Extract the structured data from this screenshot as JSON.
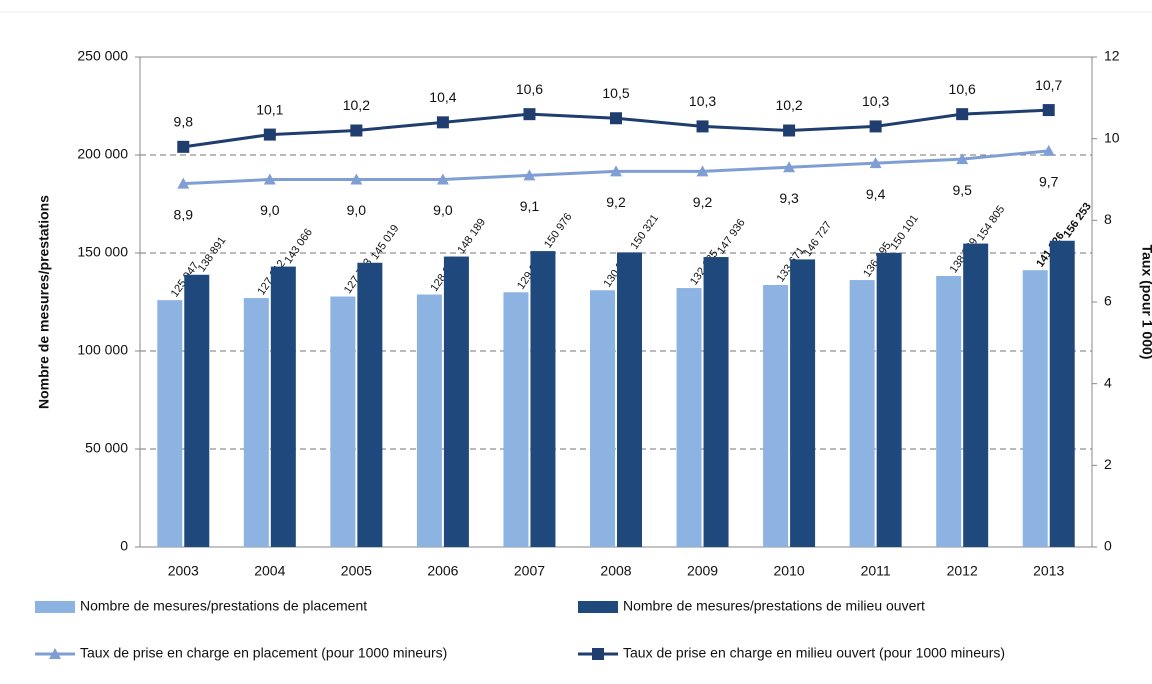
{
  "chart_data": {
    "type": "bar",
    "categories": [
      "2003",
      "2004",
      "2005",
      "2006",
      "2007",
      "2008",
      "2009",
      "2010",
      "2011",
      "2012",
      "2013"
    ],
    "y_label": "Nombre de mesures/prestations",
    "y2_label": "Taux (pour 1 000)",
    "ylim": [
      0,
      250000
    ],
    "yticks": [
      0,
      {
        "value": 50000,
        "label": "50 000"
      },
      {
        "value": 100000,
        "label": "100 000"
      },
      {
        "value": 150000,
        "label": "150 000"
      },
      {
        "value": 200000,
        "label": "200 000"
      },
      {
        "value": 250000,
        "label": "250 000"
      }
    ],
    "y2lim": [
      0,
      12
    ],
    "y2ticks": [
      0,
      2,
      4,
      6,
      8,
      10,
      12
    ],
    "grid": true,
    "series": [
      {
        "name": "Nombre de mesures/prestations de placement",
        "type": "bar",
        "color": "#8db3e2",
        "values": [
          125947,
          127012,
          127793,
          128824,
          129956,
          130991,
          132125,
          133671,
          136195,
          138269,
          141226
        ],
        "value_labels": [
          "125 947",
          "127 012",
          "127 793",
          "128 824",
          "129 956",
          "130 991",
          "132 125",
          "133 671",
          "136 195",
          "138 269",
          "141 226"
        ]
      },
      {
        "name": "Nombre de mesures/prestations de milieu ouvert",
        "type": "bar",
        "color": "#1f497d",
        "values": [
          138891,
          143066,
          145019,
          148189,
          150976,
          150321,
          147936,
          146727,
          150101,
          154805,
          156253
        ],
        "value_labels": [
          "138 891",
          "143 066",
          "145 019",
          "148 189",
          "150 976",
          "150 321",
          "147 936",
          "146 727",
          "150 101",
          "154 805",
          "156 253"
        ]
      },
      {
        "name": "Taux de prise en charge en placement (pour 1000 mineurs)",
        "type": "line",
        "marker": "triangle",
        "axis": "y2",
        "color": "#7f9fd4",
        "values": [
          8.9,
          9.0,
          9.0,
          9.0,
          9.1,
          9.2,
          9.2,
          9.3,
          9.4,
          9.5,
          9.7
        ],
        "value_labels": [
          "8,9",
          "9,0",
          "9,0",
          "9,0",
          "9,1",
          "9,2",
          "9,2",
          "9,3",
          "9,4",
          "9,5",
          "9,7"
        ]
      },
      {
        "name": "Taux de prise en charge en milieu ouvert (pour 1000 mineurs)",
        "type": "line",
        "marker": "square",
        "axis": "y2",
        "color": "#1f3d6e",
        "values": [
          9.8,
          10.1,
          10.2,
          10.4,
          10.6,
          10.5,
          10.3,
          10.2,
          10.3,
          10.6,
          10.7
        ],
        "value_labels": [
          "9,8",
          "10,1",
          "10,2",
          "10,4",
          "10,6",
          "10,5",
          "10,3",
          "10,2",
          "10,3",
          "10,6",
          "10,7"
        ]
      }
    ]
  }
}
